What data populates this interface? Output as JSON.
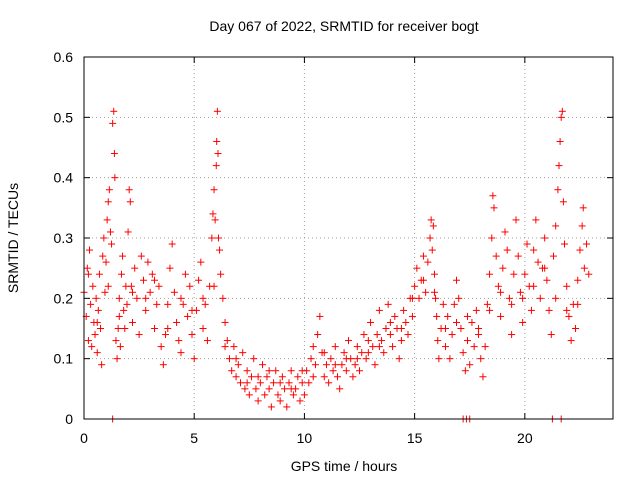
{
  "chart_data": {
    "type": "scatter",
    "title": "Day 067 of 2022, SRMTID for receiver bogt",
    "xlabel": "GPS time / hours",
    "ylabel": "SRMTID / TECUs",
    "xlim": [
      0,
      24
    ],
    "ylim": [
      0,
      0.6
    ],
    "xticks": [
      0,
      5,
      10,
      15,
      20
    ],
    "yticks": [
      0,
      0.1,
      0.2,
      0.3,
      0.4,
      0.5,
      0.6
    ],
    "xtick_labels": [
      "0",
      "5",
      "10",
      "15",
      "20"
    ],
    "ytick_labels": [
      "0",
      "0.1",
      "0.2",
      "0.3",
      "0.4",
      "0.5",
      "0.6"
    ],
    "grid": true,
    "marker": "+",
    "color": "#ff0000",
    "series": [
      {
        "name": "SRMTID",
        "points": [
          [
            0.0,
            0.21
          ],
          [
            0.1,
            0.17
          ],
          [
            0.15,
            0.25
          ],
          [
            0.2,
            0.13
          ],
          [
            0.25,
            0.28
          ],
          [
            0.3,
            0.19
          ],
          [
            0.35,
            0.12
          ],
          [
            0.4,
            0.22
          ],
          [
            0.45,
            0.16
          ],
          [
            0.5,
            0.14
          ],
          [
            0.55,
            0.2
          ],
          [
            0.6,
            0.11
          ],
          [
            0.65,
            0.18
          ],
          [
            0.7,
            0.24
          ],
          [
            0.75,
            0.15
          ],
          [
            0.8,
            0.09
          ],
          [
            0.85,
            0.27
          ],
          [
            0.9,
            0.3
          ],
          [
            0.95,
            0.21
          ],
          [
            1.0,
            0.26
          ],
          [
            1.05,
            0.33
          ],
          [
            1.1,
            0.36
          ],
          [
            1.15,
            0.38
          ],
          [
            1.2,
            0.31
          ],
          [
            1.25,
            0.29
          ],
          [
            1.3,
            0.49
          ],
          [
            1.35,
            0.51
          ],
          [
            1.38,
            0.44
          ],
          [
            1.4,
            0.4
          ],
          [
            1.45,
            0.13
          ],
          [
            1.5,
            0.1
          ],
          [
            1.55,
            0.15
          ],
          [
            1.6,
            0.2
          ],
          [
            1.65,
            0.12
          ],
          [
            1.7,
            0.24
          ],
          [
            1.75,
            0.27
          ],
          [
            1.8,
            0.18
          ],
          [
            1.85,
            0.15
          ],
          [
            1.9,
            0.22
          ],
          [
            1.95,
            0.19
          ],
          [
            2.0,
            0.31
          ],
          [
            2.05,
            0.38
          ],
          [
            2.1,
            0.36
          ],
          [
            2.15,
            0.22
          ],
          [
            2.2,
            0.16
          ],
          [
            2.3,
            0.25
          ],
          [
            2.4,
            0.2
          ],
          [
            2.5,
            0.14
          ],
          [
            2.6,
            0.27
          ],
          [
            2.7,
            0.23
          ],
          [
            2.8,
            0.18
          ],
          [
            2.9,
            0.26
          ],
          [
            3.0,
            0.21
          ],
          [
            3.1,
            0.24
          ],
          [
            3.2,
            0.15
          ],
          [
            3.3,
            0.19
          ],
          [
            3.4,
            0.22
          ],
          [
            3.5,
            0.12
          ],
          [
            3.6,
            0.09
          ],
          [
            3.7,
            0.14
          ],
          [
            3.8,
            0.19
          ],
          [
            3.9,
            0.25
          ],
          [
            4.0,
            0.29
          ],
          [
            4.1,
            0.21
          ],
          [
            4.2,
            0.16
          ],
          [
            4.3,
            0.13
          ],
          [
            4.4,
            0.11
          ],
          [
            4.5,
            0.19
          ],
          [
            4.6,
            0.24
          ],
          [
            4.7,
            0.17
          ],
          [
            4.8,
            0.22
          ],
          [
            4.9,
            0.14
          ],
          [
            5.0,
            0.1
          ],
          [
            5.1,
            0.18
          ],
          [
            5.2,
            0.23
          ],
          [
            5.3,
            0.26
          ],
          [
            5.4,
            0.15
          ],
          [
            5.5,
            0.19
          ],
          [
            5.6,
            0.13
          ],
          [
            5.7,
            0.22
          ],
          [
            5.8,
            0.3
          ],
          [
            5.85,
            0.34
          ],
          [
            5.9,
            0.38
          ],
          [
            5.95,
            0.33
          ],
          [
            6.0,
            0.42
          ],
          [
            6.02,
            0.46
          ],
          [
            6.05,
            0.51
          ],
          [
            6.08,
            0.44
          ],
          [
            6.1,
            0.3
          ],
          [
            6.15,
            0.28
          ],
          [
            6.2,
            0.24
          ],
          [
            6.3,
            0.2
          ],
          [
            6.4,
            0.16
          ],
          [
            6.5,
            0.13
          ],
          [
            6.6,
            0.1
          ],
          [
            6.7,
            0.08
          ],
          [
            6.8,
            0.12
          ],
          [
            6.9,
            0.07
          ],
          [
            7.0,
            0.09
          ],
          [
            7.1,
            0.06
          ],
          [
            7.2,
            0.11
          ],
          [
            7.3,
            0.05
          ],
          [
            7.4,
            0.08
          ],
          [
            7.5,
            0.04
          ],
          [
            7.6,
            0.07
          ],
          [
            7.7,
            0.1
          ],
          [
            7.8,
            0.05
          ],
          [
            7.9,
            0.03
          ],
          [
            8.0,
            0.06
          ],
          [
            8.1,
            0.09
          ],
          [
            8.2,
            0.04
          ],
          [
            8.3,
            0.07
          ],
          [
            8.4,
            0.05
          ],
          [
            8.5,
            0.02
          ],
          [
            8.6,
            0.06
          ],
          [
            8.7,
            0.08
          ],
          [
            8.8,
            0.04
          ],
          [
            8.9,
            0.03
          ],
          [
            9.0,
            0.07
          ],
          [
            9.1,
            0.05
          ],
          [
            9.2,
            0.02
          ],
          [
            9.3,
            0.06
          ],
          [
            9.4,
            0.08
          ],
          [
            9.5,
            0.04
          ],
          [
            9.6,
            0.05
          ],
          [
            9.7,
            0.07
          ],
          [
            9.8,
            0.03
          ],
          [
            9.9,
            0.06
          ],
          [
            10.0,
            0.04
          ],
          [
            10.1,
            0.08
          ],
          [
            10.2,
            0.06
          ],
          [
            10.3,
            0.1
          ],
          [
            10.4,
            0.12
          ],
          [
            10.5,
            0.09
          ],
          [
            10.6,
            0.14
          ],
          [
            10.7,
            0.17
          ],
          [
            10.8,
            0.11
          ],
          [
            10.9,
            0.07
          ],
          [
            11.0,
            0.09
          ],
          [
            11.1,
            0.06
          ],
          [
            11.2,
            0.1
          ],
          [
            11.3,
            0.08
          ],
          [
            11.4,
            0.12
          ],
          [
            11.5,
            0.07
          ],
          [
            11.6,
            0.05
          ],
          [
            11.7,
            0.09
          ],
          [
            11.8,
            0.11
          ],
          [
            11.9,
            0.08
          ],
          [
            12.0,
            0.13
          ],
          [
            12.1,
            0.1
          ],
          [
            12.2,
            0.07
          ],
          [
            12.3,
            0.09
          ],
          [
            12.4,
            0.12
          ],
          [
            12.5,
            0.08
          ],
          [
            12.6,
            0.11
          ],
          [
            12.7,
            0.14
          ],
          [
            12.8,
            0.1
          ],
          [
            12.9,
            0.13
          ],
          [
            13.0,
            0.16
          ],
          [
            13.1,
            0.12
          ],
          [
            13.2,
            0.09
          ],
          [
            13.3,
            0.14
          ],
          [
            13.4,
            0.18
          ],
          [
            13.5,
            0.13
          ],
          [
            13.6,
            0.11
          ],
          [
            13.7,
            0.15
          ],
          [
            13.8,
            0.19
          ],
          [
            13.9,
            0.14
          ],
          [
            14.0,
            0.12
          ],
          [
            14.1,
            0.17
          ],
          [
            14.2,
            0.15
          ],
          [
            14.3,
            0.1
          ],
          [
            14.4,
            0.13
          ],
          [
            14.5,
            0.18
          ],
          [
            14.6,
            0.16
          ],
          [
            14.7,
            0.14
          ],
          [
            14.8,
            0.2
          ],
          [
            14.9,
            0.17
          ],
          [
            15.0,
            0.22
          ],
          [
            15.1,
            0.25
          ],
          [
            15.2,
            0.2
          ],
          [
            15.3,
            0.23
          ],
          [
            15.4,
            0.27
          ],
          [
            15.5,
            0.21
          ],
          [
            15.6,
            0.26
          ],
          [
            15.7,
            0.3
          ],
          [
            15.75,
            0.33
          ],
          [
            15.8,
            0.28
          ],
          [
            15.85,
            0.32
          ],
          [
            15.9,
            0.24
          ],
          [
            15.95,
            0.2
          ],
          [
            16.0,
            0.17
          ],
          [
            16.05,
            0.13
          ],
          [
            16.1,
            0.1
          ],
          [
            16.2,
            0.15
          ],
          [
            16.3,
            0.19
          ],
          [
            16.4,
            0.12
          ],
          [
            16.5,
            0.17
          ],
          [
            16.6,
            0.1
          ],
          [
            16.7,
            0.14
          ],
          [
            16.8,
            0.19
          ],
          [
            16.9,
            0.23
          ],
          [
            17.0,
            0.2
          ],
          [
            17.1,
            0.15
          ],
          [
            17.2,
            0.11
          ],
          [
            17.3,
            0.08
          ],
          [
            17.4,
            0.13
          ],
          [
            17.5,
            0.09
          ],
          [
            17.6,
            0.16
          ],
          [
            17.7,
            0.12
          ],
          [
            17.8,
            0.18
          ],
          [
            17.9,
            0.14
          ],
          [
            18.0,
            0.1
          ],
          [
            18.1,
            0.07
          ],
          [
            18.2,
            0.12
          ],
          [
            18.3,
            0.19
          ],
          [
            18.4,
            0.24
          ],
          [
            18.5,
            0.3
          ],
          [
            18.55,
            0.37
          ],
          [
            18.6,
            0.35
          ],
          [
            18.7,
            0.27
          ],
          [
            18.8,
            0.22
          ],
          [
            18.9,
            0.17
          ],
          [
            19.0,
            0.25
          ],
          [
            19.1,
            0.31
          ],
          [
            19.2,
            0.28
          ],
          [
            19.3,
            0.2
          ],
          [
            19.4,
            0.14
          ],
          [
            19.5,
            0.24
          ],
          [
            19.6,
            0.33
          ],
          [
            19.7,
            0.27
          ],
          [
            19.8,
            0.21
          ],
          [
            19.9,
            0.16
          ],
          [
            20.0,
            0.24
          ],
          [
            20.1,
            0.29
          ],
          [
            20.2,
            0.22
          ],
          [
            20.3,
            0.18
          ],
          [
            20.4,
            0.28
          ],
          [
            20.5,
            0.33
          ],
          [
            20.6,
            0.26
          ],
          [
            20.7,
            0.2
          ],
          [
            20.8,
            0.25
          ],
          [
            20.9,
            0.3
          ],
          [
            21.0,
            0.23
          ],
          [
            21.1,
            0.18
          ],
          [
            21.2,
            0.14
          ],
          [
            21.3,
            0.27
          ],
          [
            21.4,
            0.32
          ],
          [
            21.5,
            0.38
          ],
          [
            21.55,
            0.42
          ],
          [
            21.6,
            0.46
          ],
          [
            21.65,
            0.5
          ],
          [
            21.7,
            0.51
          ],
          [
            21.75,
            0.36
          ],
          [
            21.8,
            0.29
          ],
          [
            21.9,
            0.22
          ],
          [
            22.0,
            0.17
          ],
          [
            22.1,
            0.13
          ],
          [
            22.2,
            0.19
          ],
          [
            22.3,
            0.15
          ],
          [
            22.4,
            0.23
          ],
          [
            22.5,
            0.28
          ],
          [
            22.6,
            0.32
          ],
          [
            22.65,
            0.35
          ],
          [
            22.7,
            0.25
          ],
          [
            22.8,
            0.29
          ],
          [
            0.2,
            0.24
          ],
          [
            0.6,
            0.16
          ],
          [
            1.1,
            0.22
          ],
          [
            1.6,
            0.17
          ],
          [
            2.2,
            0.21
          ],
          [
            2.8,
            0.2
          ],
          [
            3.2,
            0.23
          ],
          [
            3.8,
            0.15
          ],
          [
            4.4,
            0.2
          ],
          [
            4.9,
            0.18
          ],
          [
            5.4,
            0.2
          ],
          [
            5.9,
            0.22
          ],
          [
            6.4,
            0.12
          ],
          [
            6.9,
            0.1
          ],
          [
            7.4,
            0.06
          ],
          [
            7.9,
            0.07
          ],
          [
            8.4,
            0.08
          ],
          [
            8.9,
            0.06
          ],
          [
            9.4,
            0.05
          ],
          [
            9.9,
            0.08
          ],
          [
            10.4,
            0.07
          ],
          [
            10.9,
            0.11
          ],
          [
            11.4,
            0.09
          ],
          [
            11.9,
            0.1
          ],
          [
            12.4,
            0.1
          ],
          [
            12.9,
            0.11
          ],
          [
            13.4,
            0.12
          ],
          [
            13.9,
            0.16
          ],
          [
            14.4,
            0.15
          ],
          [
            14.9,
            0.2
          ],
          [
            15.4,
            0.23
          ],
          [
            15.9,
            0.21
          ],
          [
            16.4,
            0.15
          ],
          [
            16.9,
            0.16
          ],
          [
            17.4,
            0.17
          ],
          [
            17.9,
            0.15
          ],
          [
            18.4,
            0.18
          ],
          [
            18.9,
            0.21
          ],
          [
            19.4,
            0.19
          ],
          [
            19.9,
            0.2
          ],
          [
            20.4,
            0.22
          ],
          [
            20.9,
            0.25
          ],
          [
            21.4,
            0.2
          ],
          [
            21.9,
            0.18
          ],
          [
            22.4,
            0.19
          ],
          [
            22.9,
            0.24
          ],
          [
            1.3,
            0.0
          ],
          [
            17.2,
            0.0
          ],
          [
            17.35,
            0.0
          ],
          [
            17.5,
            0.0
          ],
          [
            21.25,
            0.0
          ],
          [
            21.65,
            0.0
          ]
        ]
      }
    ]
  }
}
